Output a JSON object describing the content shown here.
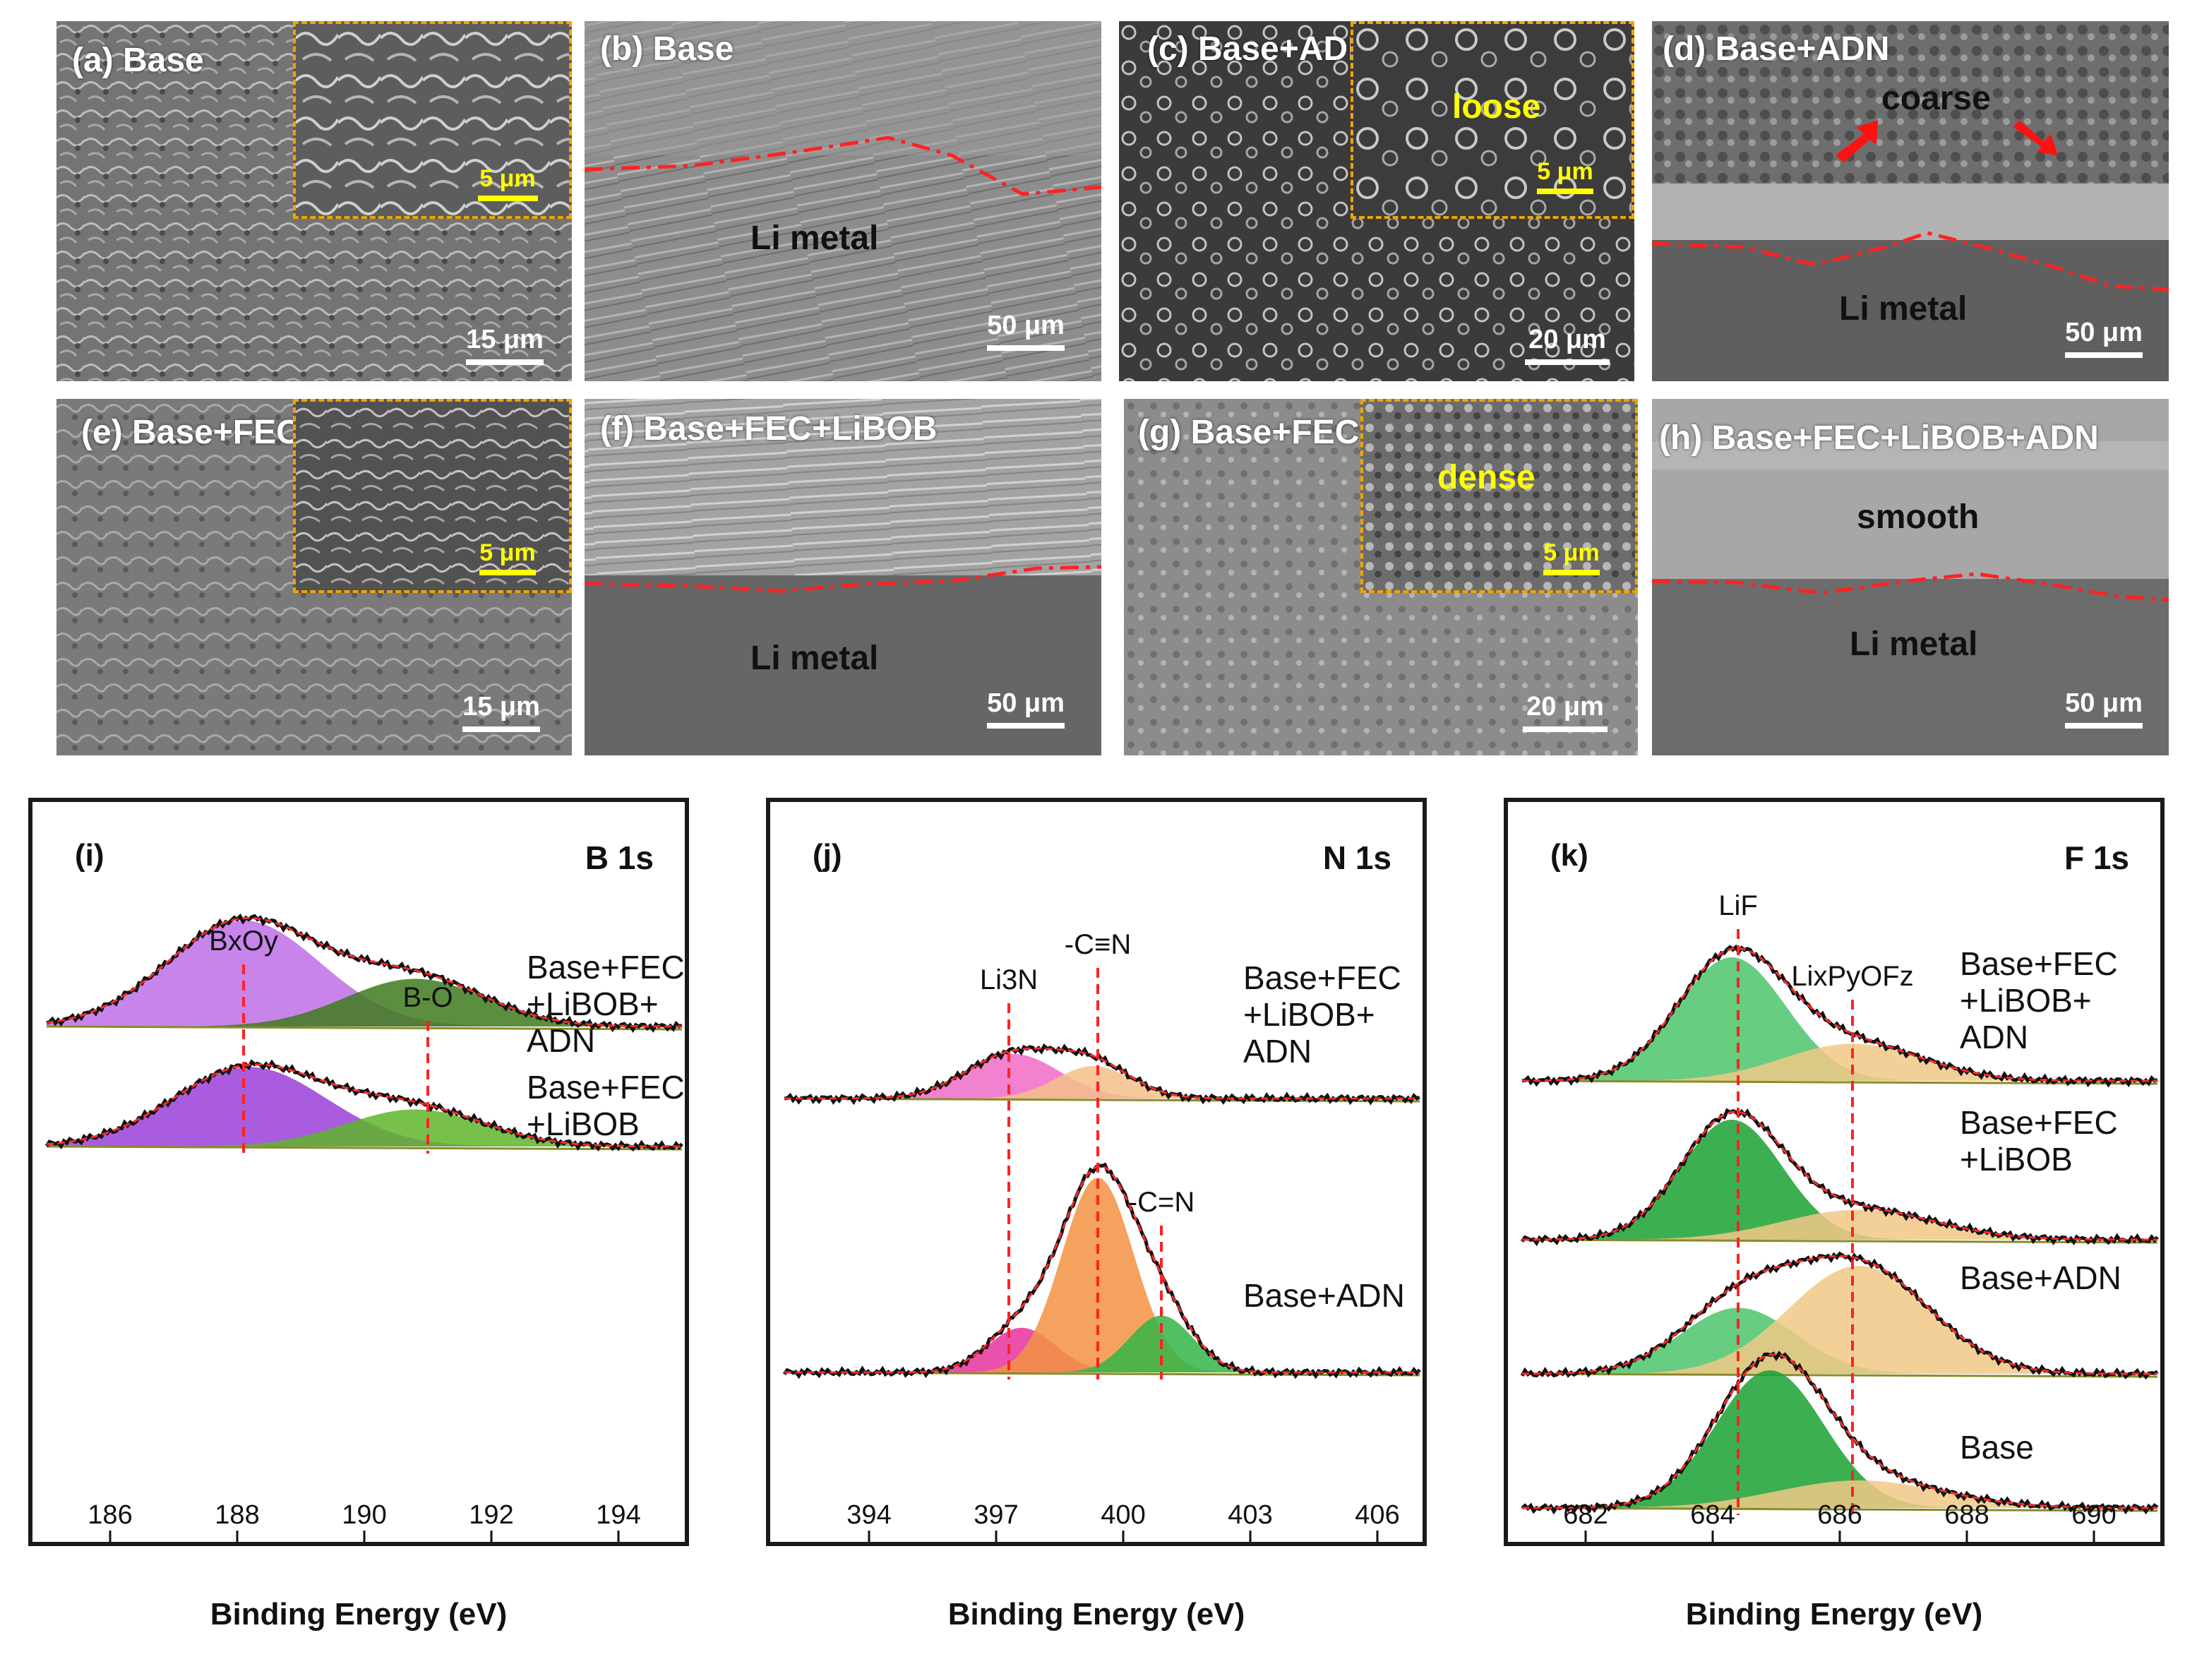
{
  "sem_panels": [
    {
      "label": "(a) Base",
      "scale": "15 μm",
      "inset_scale": "5 μm"
    },
    {
      "label": "(b) Base",
      "scale": "50 μm",
      "text": "Li metal"
    },
    {
      "label": "(c) Base+ADN",
      "scale": "20 μm",
      "inset_scale": "5 μm",
      "inset_text": "loose"
    },
    {
      "label": "(d) Base+ADN",
      "scale": "50 μm",
      "text": "Li metal",
      "top_text": "coarse"
    },
    {
      "label": "(e) Base+FEC+LiBOB",
      "scale": "15 μm",
      "inset_scale": "5 μm"
    },
    {
      "label": "(f) Base+FEC+LiBOB",
      "scale": "50 μm",
      "text": "Li metal"
    },
    {
      "label": "(g) Base+FEC+LiBOB+ADN",
      "scale": "20 μm",
      "inset_scale": "5 μm",
      "inset_text": "dense"
    },
    {
      "label": "(h) Base+FEC+LiBOB+ADN",
      "scale": "50 μm",
      "text": "Li metal",
      "top_text": "smooth"
    }
  ],
  "chart_data": [
    {
      "type": "line",
      "panel": "(i)",
      "title": "B 1s",
      "xlabel": "Binding Energy (eV)",
      "xlim": [
        185,
        195
      ],
      "xticks": [
        "186",
        "188",
        "190",
        "192",
        "194"
      ],
      "peak_labels": [
        "BxOy",
        "B-O"
      ],
      "peak_positions": [
        188.1,
        191.0
      ],
      "series": [
        {
          "name_lines": [
            "Base+FEC",
            "+LiBOB+",
            "ADN"
          ],
          "components": [
            {
              "center": 188.1,
              "height": 1.0,
              "width": 1.2,
              "color": "#c06ee8"
            },
            {
              "center": 190.8,
              "height": 0.45,
              "width": 1.1,
              "color": "#3f7a1d"
            }
          ]
        },
        {
          "name_lines": [
            "Base+FEC",
            "+LiBOB"
          ],
          "components": [
            {
              "center": 188.2,
              "height": 0.75,
              "width": 1.2,
              "color": "#9b3fd9"
            },
            {
              "center": 190.8,
              "height": 0.35,
              "width": 1.1,
              "color": "#5fb52a"
            }
          ]
        }
      ]
    },
    {
      "type": "line",
      "panel": "(j)",
      "title": "N 1s",
      "xlabel": "Binding Energy (eV)",
      "xlim": [
        392,
        407
      ],
      "xticks": [
        "394",
        "397",
        "400",
        "403",
        "406"
      ],
      "peak_labels": [
        "Li3N",
        "-C≡N",
        "-C=N"
      ],
      "peak_positions": [
        397.3,
        399.4,
        400.9
      ],
      "series": [
        {
          "name_lines": [
            "Base+FEC",
            "+LiBOB+",
            "ADN"
          ],
          "components": [
            {
              "center": 397.4,
              "height": 0.55,
              "width": 1.1,
              "color": "#f06bc8"
            },
            {
              "center": 399.3,
              "height": 0.4,
              "width": 0.9,
              "color": "#f5c08a"
            }
          ]
        },
        {
          "name_lines": [
            "Base+ADN"
          ],
          "components": [
            {
              "center": 397.6,
              "height": 0.55,
              "width": 0.8,
              "color": "#e8319e"
            },
            {
              "center": 399.4,
              "height": 2.4,
              "width": 0.85,
              "color": "#f39242"
            },
            {
              "center": 400.9,
              "height": 0.7,
              "width": 0.75,
              "color": "#33b547"
            }
          ]
        }
      ]
    },
    {
      "type": "line",
      "panel": "(k)",
      "title": "F 1s",
      "xlabel": "Binding Energy (eV)",
      "xlim": [
        681,
        691
      ],
      "xticks": [
        "682",
        "684",
        "686",
        "688",
        "690"
      ],
      "peak_labels": [
        "LiF",
        "LixPyOFz"
      ],
      "peak_positions": [
        684.4,
        686.2
      ],
      "series": [
        {
          "name_lines": [
            "Base+FEC",
            "+LiBOB+",
            "ADN"
          ],
          "components": [
            {
              "center": 684.3,
              "height": 1.0,
              "width": 0.85,
              "color": "#4cc46a"
            },
            {
              "center": 686.2,
              "height": 0.3,
              "width": 1.1,
              "color": "#f2c887"
            }
          ]
        },
        {
          "name_lines": [
            "Base+FEC",
            "+LiBOB"
          ],
          "components": [
            {
              "center": 684.3,
              "height": 1.0,
              "width": 0.8,
              "color": "#1aa232"
            },
            {
              "center": 686.3,
              "height": 0.25,
              "width": 1.2,
              "color": "#f2c887"
            }
          ]
        },
        {
          "name_lines": [
            "Base+ADN"
          ],
          "components": [
            {
              "center": 684.4,
              "height": 0.55,
              "width": 0.9,
              "color": "#4cc46a"
            },
            {
              "center": 686.3,
              "height": 0.9,
              "width": 1.1,
              "color": "#f2c887"
            }
          ]
        },
        {
          "name_lines": [
            "Base"
          ],
          "components": [
            {
              "center": 684.9,
              "height": 1.0,
              "width": 0.85,
              "color": "#1aa232"
            },
            {
              "center": 686.3,
              "height": 0.2,
              "width": 1.3,
              "color": "#f2c887"
            }
          ]
        }
      ]
    }
  ]
}
